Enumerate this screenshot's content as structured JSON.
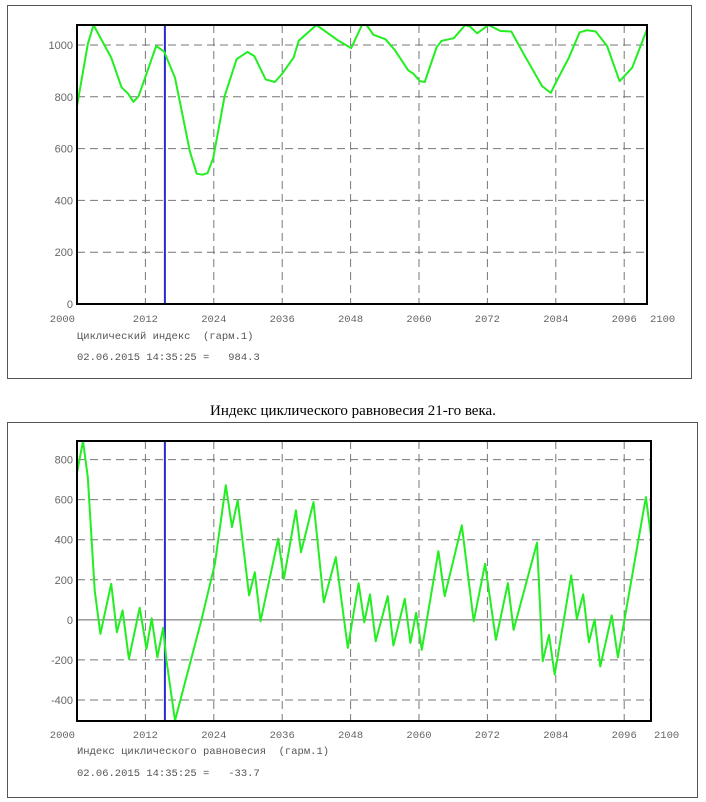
{
  "caption": "Индекс циклического равновесия 21-го века.",
  "colors": {
    "line": "#22ee22",
    "cursor": "#2a2ad0",
    "grid": "#777777",
    "frame": "#000000"
  },
  "chart_data": [
    {
      "type": "line",
      "title": "",
      "series_label": "Циклический индекс  (гарм.1)",
      "readout": {
        "datetime": "02.06.2015 14:35:25 =",
        "value": "984.3"
      },
      "cursor_x": 2015.42,
      "xlim": [
        2000,
        2100
      ],
      "ylim": [
        0,
        1077
      ],
      "grid": true,
      "x_ticks": [
        2000,
        2012,
        2024,
        2036,
        2048,
        2060,
        2072,
        2084,
        2096,
        2100
      ],
      "x_tick_labels": [
        "2000",
        "2012",
        "2024",
        "2036",
        "2048",
        "2060",
        "2072",
        "2084",
        "2096",
        "2100"
      ],
      "y_ticks": [
        0,
        200,
        400,
        600,
        800,
        1000
      ],
      "y_tick_labels": [
        "0",
        "200",
        "400",
        "600",
        "800",
        "1000"
      ],
      "x": [
        2000,
        2001.9,
        2002.9,
        2006,
        2007.8,
        2009,
        2009.9,
        2010.8,
        2013.9,
        2015.3,
        2017.2,
        2019.8,
        2021,
        2022,
        2022.9,
        2023.9,
        2025.9,
        2028,
        2029.9,
        2031.1,
        2033.1,
        2034.7,
        2035.9,
        2038,
        2038.9,
        2042,
        2045.9,
        2048.1,
        2050,
        2050.8,
        2052,
        2054.1,
        2055.8,
        2058.1,
        2059,
        2060.2,
        2061,
        2063.1,
        2064,
        2066.1,
        2068.1,
        2069,
        2070.2,
        2072.2,
        2074.3,
        2076.2,
        2078.4,
        2081.6,
        2083.1,
        2083.9,
        2086.3,
        2088.2,
        2089.5,
        2091,
        2093,
        2095.2,
        2097.4,
        2100
      ],
      "y": [
        764,
        1003,
        1077,
        951,
        837,
        811,
        780,
        802,
        996,
        974,
        873,
        589,
        503,
        499,
        505,
        563,
        802,
        945,
        973,
        957,
        867,
        857,
        886,
        951,
        1016,
        1077,
        1016,
        988,
        1077,
        1077,
        1039,
        1022,
        979,
        902,
        889,
        860,
        857,
        992,
        1016,
        1026,
        1077,
        1070,
        1045,
        1077,
        1054,
        1052,
        964,
        841,
        815,
        850,
        951,
        1049,
        1057,
        1052,
        996,
        860,
        912,
        1060
      ]
    },
    {
      "type": "line",
      "title": "",
      "series_label": "Индекс циклического равновесия  (гарм.1)",
      "readout": {
        "datetime": "02.06.2015 14:35:25 =",
        "value": "-33.7"
      },
      "cursor_x": 2015.42,
      "xlim": [
        2000,
        2100
      ],
      "ylim": [
        -505,
        893
      ],
      "grid": true,
      "x_ticks": [
        2000,
        2012,
        2024,
        2036,
        2048,
        2060,
        2072,
        2084,
        2096,
        2100
      ],
      "x_tick_labels": [
        "2000",
        "2012",
        "2024",
        "2036",
        "2048",
        "2060",
        "2072",
        "2084",
        "2096",
        "2100"
      ],
      "y_ticks": [
        -400,
        -200,
        0,
        200,
        400,
        600,
        800
      ],
      "y_tick_labels": [
        "-400",
        "-200",
        "0",
        "200",
        "400",
        "600",
        "800"
      ],
      "x": [
        2000,
        2001.05,
        2001.9,
        2003.1,
        2004.1,
        2006,
        2007,
        2008,
        2009.1,
        2011,
        2012.2,
        2013.1,
        2014.1,
        2015.1,
        2015.7,
        2017.2,
        2021.8,
        2024.2,
        2026.1,
        2027.2,
        2028.2,
        2030.2,
        2031.2,
        2032.2,
        2035.3,
        2036.3,
        2038.4,
        2039.3,
        2041.5,
        2043.3,
        2045.4,
        2047.5,
        2049.4,
        2050.4,
        2051.4,
        2052.4,
        2054.5,
        2055.5,
        2057.5,
        2058.5,
        2059.5,
        2060.5,
        2063.4,
        2064.5,
        2067.5,
        2069.6,
        2071.6,
        2073.5,
        2075.6,
        2076.6,
        2080.7,
        2081.7,
        2082.8,
        2083.8,
        2086.7,
        2087.7,
        2088.8,
        2089.8,
        2090.8,
        2091.8,
        2093.8,
        2094.9,
        2099.8,
        2100.9
      ],
      "y": [
        733,
        893,
        713,
        147,
        -70,
        180,
        -62,
        47,
        -195,
        60,
        -145,
        8,
        -187,
        -40,
        -203,
        -503,
        -3,
        280,
        672,
        463,
        597,
        122,
        238,
        -7,
        405,
        205,
        547,
        338,
        588,
        88,
        313,
        -140,
        183,
        -12,
        127,
        -107,
        118,
        -128,
        105,
        -115,
        35,
        -150,
        343,
        118,
        472,
        -7,
        280,
        -100,
        183,
        -50,
        385,
        -207,
        -75,
        -273,
        222,
        5,
        127,
        -112,
        2,
        -233,
        22,
        -187,
        613,
        375
      ]
    }
  ]
}
